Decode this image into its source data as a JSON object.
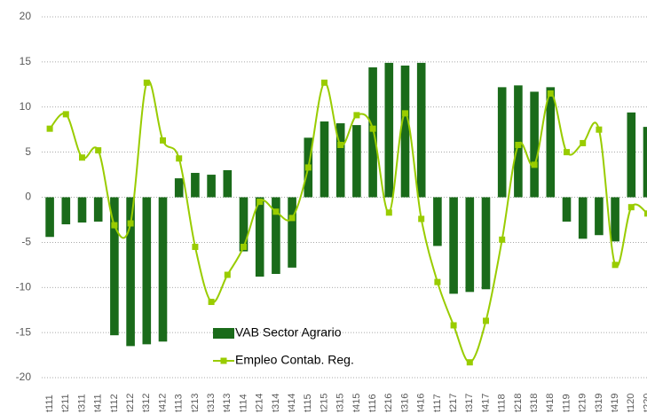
{
  "chart_data": {
    "type": "bar_line",
    "categories": [
      "t111",
      "t211",
      "t311",
      "t411",
      "t112",
      "t212",
      "t312",
      "t412",
      "t113",
      "t213",
      "t313",
      "t413",
      "t114",
      "t214",
      "t314",
      "t414",
      "t115",
      "t215",
      "t315",
      "t415",
      "t116",
      "t216",
      "t316",
      "t416",
      "t117",
      "t217",
      "t317",
      "t417",
      "t118",
      "t218",
      "t318",
      "t418",
      "t119",
      "t219",
      "t319",
      "t419",
      "t120",
      "t220"
    ],
    "series": [
      {
        "name": "VAB Sector Agrario",
        "type": "bar",
        "color": "#1a6b1a",
        "values": [
          -4.4,
          -3,
          -2.8,
          -2.7,
          -15.3,
          -16.5,
          -16.3,
          -16,
          2.1,
          2.7,
          2.5,
          3,
          -6,
          -8.8,
          -8.5,
          -7.8,
          6.6,
          8.4,
          8.2,
          8,
          14.4,
          14.9,
          14.6,
          14.9,
          -5.4,
          -10.7,
          -10.5,
          -10.2,
          12.2,
          12.4,
          11.7,
          12.2,
          -2.7,
          -4.6,
          -4.2,
          -4.9,
          9.4,
          7.8
        ]
      },
      {
        "name": "Empleo Contab. Reg.",
        "type": "line",
        "color": "#99cc00",
        "values": [
          7.6,
          9.2,
          4.4,
          5.2,
          -3.1,
          -2.9,
          12.7,
          6.3,
          4.3,
          -5.5,
          -11.6,
          -8.6,
          -5.5,
          -0.5,
          -1.6,
          -2.3,
          3.3,
          12.7,
          5.8,
          9.1,
          7.6,
          -1.7,
          9.3,
          -2.4,
          -9.4,
          -14.2,
          -18.3,
          -13.7,
          -4.7,
          5.8,
          3.6,
          11.5,
          5,
          6,
          7.5,
          -7.5,
          -1.1,
          -1.8
        ]
      }
    ],
    "ylim": [
      -20,
      20
    ],
    "yticks": [
      -20,
      -15,
      -10,
      -5,
      0,
      5,
      10,
      15,
      20
    ],
    "grid": true,
    "legend": "lower center"
  }
}
